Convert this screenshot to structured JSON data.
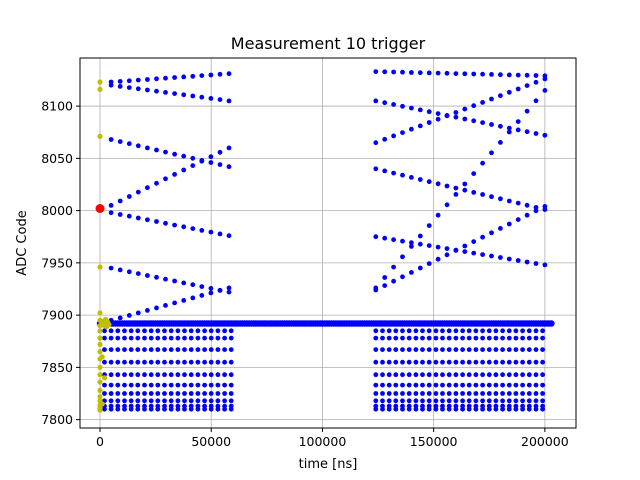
{
  "chart_data": {
    "type": "scatter",
    "title": "Measurement 10 trigger",
    "xlabel": "time [ns]",
    "ylabel": "ADC Code",
    "xlim": [
      -9000,
      214000
    ],
    "ylim": [
      7792,
      8146
    ],
    "xticks": [
      0,
      50000,
      100000,
      150000,
      200000
    ],
    "xtick_labels": [
      "0",
      "50000",
      "100000",
      "150000",
      "200000"
    ],
    "yticks": [
      7800,
      7850,
      7900,
      7950,
      8000,
      8050,
      8100
    ],
    "ytick_labels": [
      "7800",
      "7850",
      "7900",
      "7950",
      "8000",
      "8050",
      "8100"
    ],
    "grid": true,
    "colors": {
      "main_series": "#0000ff",
      "early_series": "#bfbf00",
      "trigger_point": "#ff0000",
      "grid": "#b0b0b0"
    },
    "baseline": {
      "value": 7892,
      "x_range": [
        0,
        203000
      ],
      "x_step": 1000
    },
    "scatter_groups": [
      {
        "x_range": [
          2000,
          59000
        ],
        "x_step": 3000,
        "levels": [
          7810,
          7813,
          7818,
          7825,
          7833,
          7843,
          7855,
          7867,
          7878,
          7885
        ]
      },
      {
        "x_range": [
          124000,
          201000
        ],
        "x_step": 3000,
        "levels": [
          7810,
          7813,
          7818,
          7825,
          7833,
          7843,
          7855,
          7867,
          7878,
          7885
        ]
      }
    ],
    "line_series": [
      {
        "x": [
          5000,
          58000
        ],
        "y": [
          8123,
          8131
        ]
      },
      {
        "x": [
          5000,
          58000
        ],
        "y": [
          8120,
          8105
        ]
      },
      {
        "x": [
          5000,
          58000
        ],
        "y": [
          8068,
          8042
        ]
      },
      {
        "x": [
          5000,
          58000
        ],
        "y": [
          8005,
          8060
        ]
      },
      {
        "x": [
          5000,
          58000
        ],
        "y": [
          7998,
          7976
        ]
      },
      {
        "x": [
          5000,
          58000
        ],
        "y": [
          7945,
          7922
        ]
      },
      {
        "x": [
          5000,
          58000
        ],
        "y": [
          7895,
          7926
        ]
      },
      {
        "x": [
          124000,
          200000
        ],
        "y": [
          8133,
          8129
        ]
      },
      {
        "x": [
          124000,
          200000
        ],
        "y": [
          8105,
          8072
        ]
      },
      {
        "x": [
          124000,
          200000
        ],
        "y": [
          8065,
          8126
        ]
      },
      {
        "x": [
          124000,
          200000
        ],
        "y": [
          8040,
          8001
        ]
      },
      {
        "x": [
          124000,
          200000
        ],
        "y": [
          7975,
          7948
        ]
      },
      {
        "x": [
          124000,
          200000
        ],
        "y": [
          7924,
          8004
        ]
      },
      {
        "x": [
          124000,
          200000
        ],
        "y": [
          7926,
          8115
        ]
      }
    ],
    "early_points": {
      "x": [
        0,
        0,
        0,
        0,
        0,
        0,
        0,
        0,
        0,
        0,
        0,
        0,
        0,
        0,
        0,
        0,
        0,
        0,
        0,
        0,
        0,
        1000,
        1500,
        2000,
        2500,
        3000,
        3500,
        4000,
        1000,
        2000,
        1000
      ],
      "y": [
        8123,
        8116,
        8071,
        7946,
        7902,
        7895,
        7890,
        7885,
        7878,
        7872,
        7865,
        7858,
        7850,
        7843,
        7836,
        7828,
        7822,
        7818,
        7814,
        7811,
        7809,
        7892,
        7894,
        7890,
        7896,
        7889,
        7893,
        7891,
        7860,
        7840,
        7815
      ]
    },
    "trigger_point": {
      "x": 0,
      "y": 8002
    }
  }
}
